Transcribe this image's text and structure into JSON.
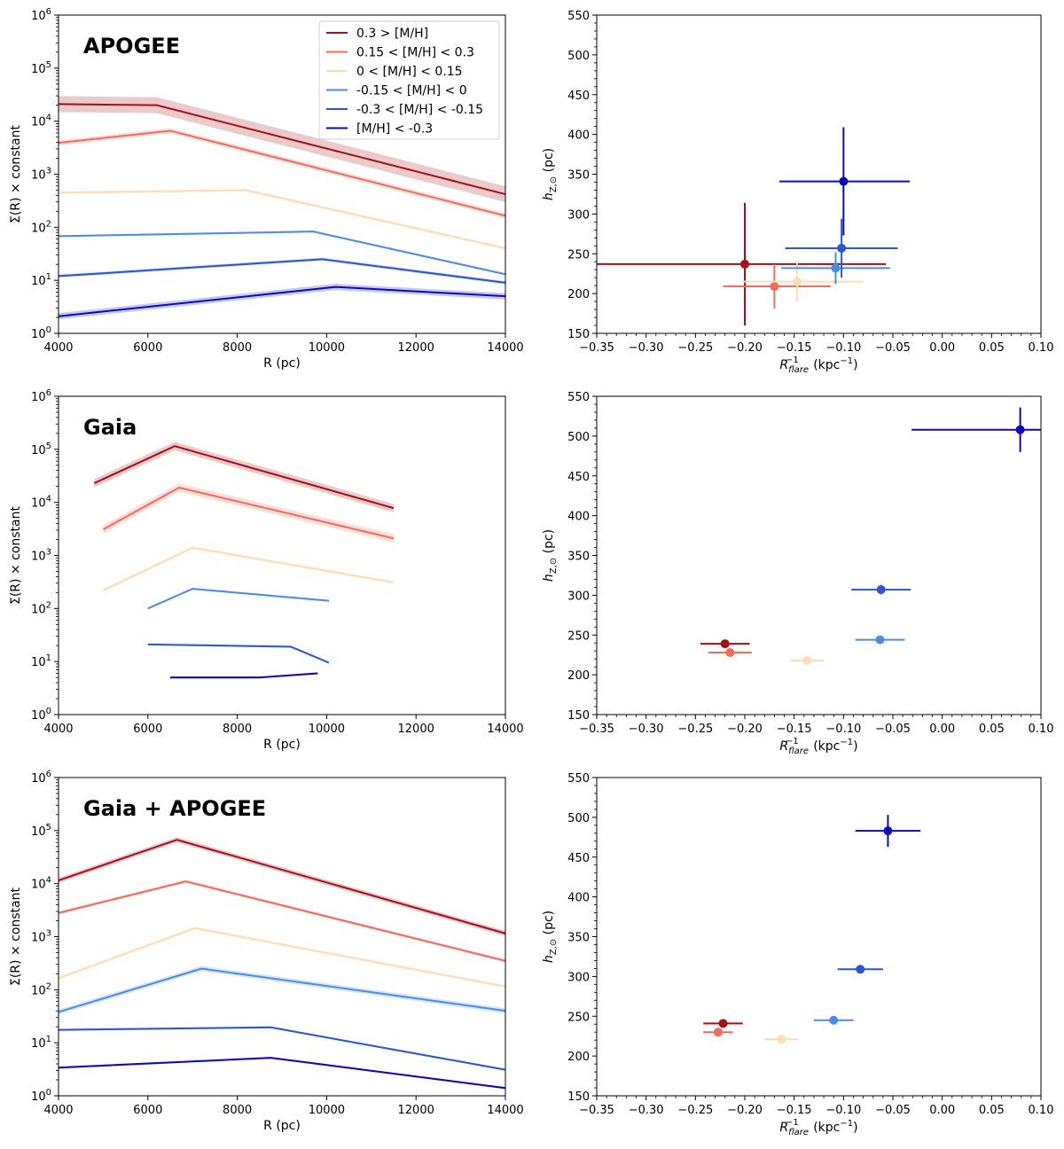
{
  "figure": {
    "description_free": true
  },
  "legend": {
    "entries": [
      {
        "label": "0.3 > [M/H]",
        "color": "#a50f15"
      },
      {
        "label": "0.15 < [M/H] < 0.3",
        "color": "#f26b5b"
      },
      {
        "label": "0 < [M/H] < 0.15",
        "color": "#fddbb4"
      },
      {
        "label": "-0.15 < [M/H] < 0",
        "color": "#4a8ce8"
      },
      {
        "label": "-0.3 < [M/H] < -0.15",
        "color": "#2a55d8"
      },
      {
        "label": "[M/H] < -0.3",
        "color": "#0a0ab8"
      }
    ]
  },
  "chart_data": [
    {
      "type": "line",
      "title": "APOGEE",
      "xlabel": "R (pc)",
      "ylabel": "Σ(R) × constant",
      "xlim": [
        4000,
        14000
      ],
      "ylim": [
        1,
        1000000
      ],
      "yscale": "log",
      "xticks": [
        "4000",
        "6000",
        "8000",
        "10000",
        "12000",
        "14000"
      ],
      "yticks": [
        "10^0",
        "10^1",
        "10^2",
        "10^3",
        "10^4",
        "10^5",
        "10^6"
      ],
      "legend_position": "top-right",
      "series": [
        {
          "name": "0.3 > [M/H]",
          "x": [
            4000,
            6200,
            14000
          ],
          "y": [
            21000,
            20000,
            420
          ],
          "band": 0.15
        },
        {
          "name": "0.15 < [M/H] < 0.3",
          "x": [
            4000,
            6500,
            14000
          ],
          "y": [
            3900,
            6600,
            165
          ],
          "band": 0.05
        },
        {
          "name": "0 < [M/H] < 0.15",
          "x": [
            4000,
            8200,
            14000
          ],
          "y": [
            450,
            500,
            40
          ],
          "band": 0.03
        },
        {
          "name": "-0.15 < [M/H] < 0",
          "x": [
            4000,
            9700,
            14000
          ],
          "y": [
            68,
            83,
            13
          ],
          "band": 0.02
        },
        {
          "name": "-0.3 < [M/H] < -0.15",
          "x": [
            4000,
            9900,
            14000
          ],
          "y": [
            12,
            25,
            9
          ],
          "band": 0.03
        },
        {
          "name": "[M/H] < -0.3",
          "x": [
            4000,
            10200,
            14000
          ],
          "y": [
            2.1,
            7.5,
            5
          ],
          "band": 0.06
        }
      ]
    },
    {
      "type": "scatter",
      "title": "",
      "xlabel": "R_flare^-1 (kpc^-1)",
      "ylabel": "h_Z,⊙ (pc)",
      "xlim": [
        -0.35,
        0.1
      ],
      "ylim": [
        150,
        550
      ],
      "xticks": [
        "−0.35",
        "−0.30",
        "−0.25",
        "−0.20",
        "−0.15",
        "−0.10",
        "−0.05",
        "0.00",
        "0.05",
        "0.10"
      ],
      "yticks": [
        "150",
        "200",
        "250",
        "300",
        "350",
        "400",
        "450",
        "500",
        "550"
      ],
      "points": [
        {
          "name": "0.3 > [M/H]",
          "x": -0.2,
          "y": 237,
          "xerr": [
            0.15,
            0.143
          ],
          "yerr": [
            77,
            77
          ]
        },
        {
          "name": "0.15 < [M/H] < 0.3",
          "x": -0.17,
          "y": 209,
          "xerr": [
            0.052,
            0.057
          ],
          "yerr": [
            28,
            28
          ]
        },
        {
          "name": "0 < [M/H] < 0.15",
          "x": -0.147,
          "y": 215,
          "xerr": [
            0.055,
            0.067
          ],
          "yerr": [
            25,
            25
          ]
        },
        {
          "name": "-0.15 < [M/H] < 0",
          "x": -0.108,
          "y": 232,
          "xerr": [
            0.055,
            0.055
          ],
          "yerr": [
            20,
            20
          ]
        },
        {
          "name": "-0.3 < [M/H] < -0.15",
          "x": -0.102,
          "y": 257,
          "xerr": [
            0.057,
            0.057
          ],
          "yerr": [
            37,
            37
          ]
        },
        {
          "name": "[M/H] < -0.3",
          "x": -0.1,
          "y": 341,
          "xerr": [
            0.065,
            0.067
          ],
          "yerr": [
            68,
            68
          ]
        }
      ]
    },
    {
      "type": "line",
      "title": "Gaia",
      "xlabel": "R (pc)",
      "ylabel": "Σ(R) × constant",
      "xlim": [
        4000,
        14000
      ],
      "ylim": [
        1,
        1000000
      ],
      "yscale": "log",
      "xticks": [
        "4000",
        "6000",
        "8000",
        "10000",
        "12000",
        "14000"
      ],
      "yticks": [
        "10^0",
        "10^1",
        "10^2",
        "10^3",
        "10^4",
        "10^5",
        "10^6"
      ],
      "series": [
        {
          "name": "0.3 > [M/H]",
          "x": [
            4800,
            6600,
            11500
          ],
          "y": [
            23000,
            115000,
            7800
          ],
          "band": 0.08
        },
        {
          "name": "0.15 < [M/H] < 0.3",
          "x": [
            5000,
            6700,
            11500
          ],
          "y": [
            3100,
            19000,
            2100
          ],
          "band": 0.08
        },
        {
          "name": "0 < [M/H] < 0.15",
          "x": [
            5000,
            7000,
            11500
          ],
          "y": [
            220,
            1400,
            310
          ],
          "band": 0.03
        },
        {
          "name": "-0.15 < [M/H] < 0",
          "x": [
            6000,
            7000,
            10050
          ],
          "y": [
            100,
            235,
            140
          ],
          "band": 0.02
        },
        {
          "name": "-0.3 < [M/H] < -0.15",
          "x": [
            6000,
            9200,
            10050
          ],
          "y": [
            21,
            19,
            9.5
          ],
          "band": 0.02
        },
        {
          "name": "[M/H] < -0.3",
          "x": [
            6500,
            8500,
            9800
          ],
          "y": [
            5,
            5,
            6
          ],
          "band": 0.02
        }
      ]
    },
    {
      "type": "scatter",
      "title": "",
      "xlabel": "R_flare^-1 (kpc^-1)",
      "ylabel": "h_Z,⊙ (pc)",
      "xlim": [
        -0.35,
        0.1
      ],
      "ylim": [
        150,
        550
      ],
      "xticks": [
        "−0.35",
        "−0.30",
        "−0.25",
        "−0.20",
        "−0.15",
        "−0.10",
        "−0.05",
        "0.00",
        "0.05",
        "0.10"
      ],
      "yticks": [
        "150",
        "200",
        "250",
        "300",
        "350",
        "400",
        "450",
        "500",
        "550"
      ],
      "points": [
        {
          "name": "0.3 > [M/H]",
          "x": -0.22,
          "y": 239,
          "xerr": [
            0.025,
            0.025
          ],
          "yerr": [
            3,
            3
          ]
        },
        {
          "name": "0.15 < [M/H] < 0.3",
          "x": -0.215,
          "y": 228,
          "xerr": [
            0.022,
            0.022
          ],
          "yerr": [
            2,
            2
          ]
        },
        {
          "name": "0 < [M/H] < 0.15",
          "x": -0.137,
          "y": 218,
          "xerr": [
            0.017,
            0.017
          ],
          "yerr": [
            2,
            2
          ]
        },
        {
          "name": "-0.15 < [M/H] < 0",
          "x": -0.063,
          "y": 244,
          "xerr": [
            0.025,
            0.025
          ],
          "yerr": [
            2,
            2
          ]
        },
        {
          "name": "-0.3 < [M/H] < -0.15",
          "x": -0.062,
          "y": 307,
          "xerr": [
            0.03,
            0.03
          ],
          "yerr": [
            6,
            6
          ]
        },
        {
          "name": "[M/H] < -0.3",
          "x": 0.079,
          "y": 508,
          "xerr": [
            0.11,
            0.09
          ],
          "yerr": [
            28,
            28
          ]
        }
      ]
    },
    {
      "type": "line",
      "title": "Gaia + APOGEE",
      "xlabel": "R (pc)",
      "ylabel": "Σ(R) × constant",
      "xlim": [
        4000,
        14000
      ],
      "ylim": [
        1,
        1000000
      ],
      "yscale": "log",
      "xticks": [
        "4000",
        "6000",
        "8000",
        "10000",
        "12000",
        "14000"
      ],
      "yticks": [
        "10^0",
        "10^1",
        "10^2",
        "10^3",
        "10^4",
        "10^5",
        "10^6"
      ],
      "series": [
        {
          "name": "0.3 > [M/H]",
          "x": [
            4000,
            6650,
            14000
          ],
          "y": [
            11500,
            67000,
            1150
          ],
          "band": 0.05
        },
        {
          "name": "0.15 < [M/H] < 0.3",
          "x": [
            4000,
            6850,
            14000
          ],
          "y": [
            2800,
            11000,
            350
          ],
          "band": 0.03
        },
        {
          "name": "0 < [M/H] < 0.15",
          "x": [
            4000,
            7050,
            14000
          ],
          "y": [
            165,
            1450,
            115
          ],
          "band": 0.03
        },
        {
          "name": "-0.15 < [M/H] < 0",
          "x": [
            4000,
            7200,
            14000
          ],
          "y": [
            38,
            250,
            40
          ],
          "band": 0.05
        },
        {
          "name": "-0.3 < [M/H] < -0.15",
          "x": [
            4000,
            8750,
            14000
          ],
          "y": [
            17.5,
            19.5,
            3.1
          ],
          "band": 0.02
        },
        {
          "name": "[M/H] < -0.3",
          "x": [
            4000,
            8750,
            14000
          ],
          "y": [
            3.4,
            5.2,
            1.4
          ],
          "band": 0.02
        }
      ]
    },
    {
      "type": "scatter",
      "title": "",
      "xlabel": "R_flare^-1 (kpc^-1)",
      "ylabel": "h_Z,⊙ (pc)",
      "xlim": [
        -0.35,
        0.1
      ],
      "ylim": [
        150,
        550
      ],
      "xticks": [
        "−0.35",
        "−0.30",
        "−0.25",
        "−0.20",
        "−0.15",
        "−0.10",
        "−0.05",
        "0.00",
        "0.05",
        "0.10"
      ],
      "yticks": [
        "150",
        "200",
        "250",
        "300",
        "350",
        "400",
        "450",
        "500",
        "550"
      ],
      "points": [
        {
          "name": "0.3 > [M/H]",
          "x": -0.222,
          "y": 241,
          "xerr": [
            0.02,
            0.02
          ],
          "yerr": [
            4,
            4
          ]
        },
        {
          "name": "0.15 < [M/H] < 0.3",
          "x": -0.227,
          "y": 230,
          "xerr": [
            0.015,
            0.015
          ],
          "yerr": [
            3,
            3
          ]
        },
        {
          "name": "0 < [M/H] < 0.15",
          "x": -0.163,
          "y": 221,
          "xerr": [
            0.017,
            0.017
          ],
          "yerr": [
            2,
            2
          ]
        },
        {
          "name": "-0.15 < [M/H] < 0",
          "x": -0.11,
          "y": 245,
          "xerr": [
            0.02,
            0.02
          ],
          "yerr": [
            3,
            3
          ]
        },
        {
          "name": "-0.3 < [M/H] < -0.15",
          "x": -0.083,
          "y": 309,
          "xerr": [
            0.023,
            0.023
          ],
          "yerr": [
            5,
            5
          ]
        },
        {
          "name": "[M/H] < -0.3",
          "x": -0.055,
          "y": 483,
          "xerr": [
            0.033,
            0.033
          ],
          "yerr": [
            20,
            20
          ]
        }
      ]
    }
  ]
}
